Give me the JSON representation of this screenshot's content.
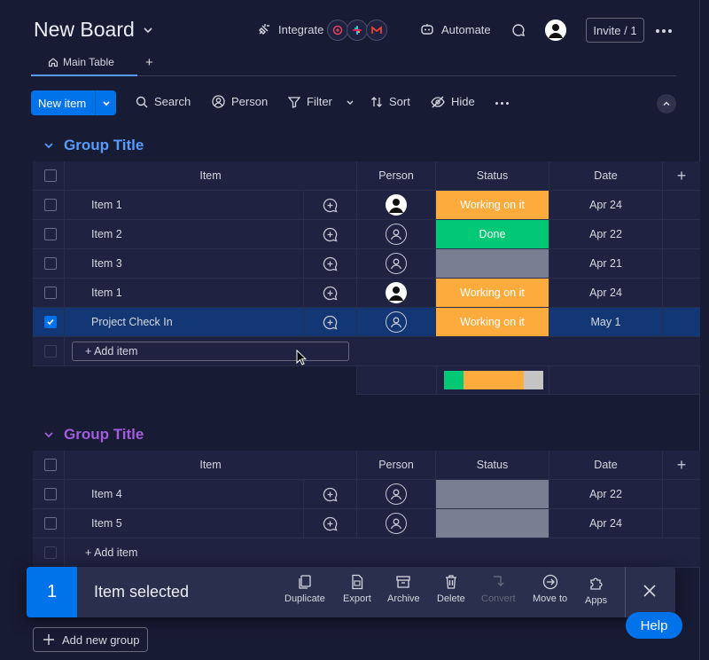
{
  "header": {
    "board_title": "New Board",
    "integrate_label": "Integrate",
    "automate_label": "Automate",
    "invite_label": "Invite / 1"
  },
  "tabs": {
    "main_table_label": "Main Table"
  },
  "toolbar": {
    "new_item_label": "New item",
    "search_label": "Search",
    "person_label": "Person",
    "filter_label": "Filter",
    "sort_label": "Sort",
    "hide_label": "Hide"
  },
  "columns": {
    "item": "Item",
    "person": "Person",
    "status": "Status",
    "date": "Date"
  },
  "groups": [
    {
      "title": "Group Title",
      "color": "#579bfc",
      "add_item_label": "+ Add item",
      "rows": [
        {
          "name": "Item 1",
          "person": "avatar",
          "status": "Working on it",
          "status_class": "working",
          "date": "Apr 24",
          "selected": false
        },
        {
          "name": "Item 2",
          "person": "empty",
          "status": "Done",
          "status_class": "done",
          "date": "Apr 22",
          "selected": false
        },
        {
          "name": "Item 3",
          "person": "empty",
          "status": "",
          "status_class": "empty",
          "date": "Apr 21",
          "selected": false
        },
        {
          "name": "Item 1",
          "person": "avatar",
          "status": "Working on it",
          "status_class": "working",
          "date": "Apr 24",
          "selected": false
        },
        {
          "name": "Project Check In",
          "person": "empty",
          "status": "Working on it",
          "status_class": "working",
          "date": "May 1",
          "selected": true
        }
      ],
      "status_summary": [
        {
          "label": "Done",
          "fraction": 0.2,
          "color": "#00c875"
        },
        {
          "label": "Working on it",
          "fraction": 0.6,
          "color": "#fdab3d"
        },
        {
          "label": "",
          "fraction": 0.2,
          "color": "#c4c4c4"
        }
      ]
    },
    {
      "title": "Group Title",
      "color": "#a25ddc",
      "add_item_label": "+ Add item",
      "rows": [
        {
          "name": "Item 4",
          "person": "empty",
          "status": "",
          "status_class": "empty",
          "date": "Apr 22",
          "selected": false
        },
        {
          "name": "Item 5",
          "person": "empty",
          "status": "",
          "status_class": "empty",
          "date": "Apr 24",
          "selected": false
        }
      ]
    }
  ],
  "action_bar": {
    "count": "1",
    "selected_text": "Item selected",
    "actions": [
      "Duplicate",
      "Export",
      "Archive",
      "Delete",
      "Convert",
      "Move to",
      "Apps"
    ]
  },
  "footer": {
    "add_group_label": "Add new group",
    "help_label": "Help"
  }
}
